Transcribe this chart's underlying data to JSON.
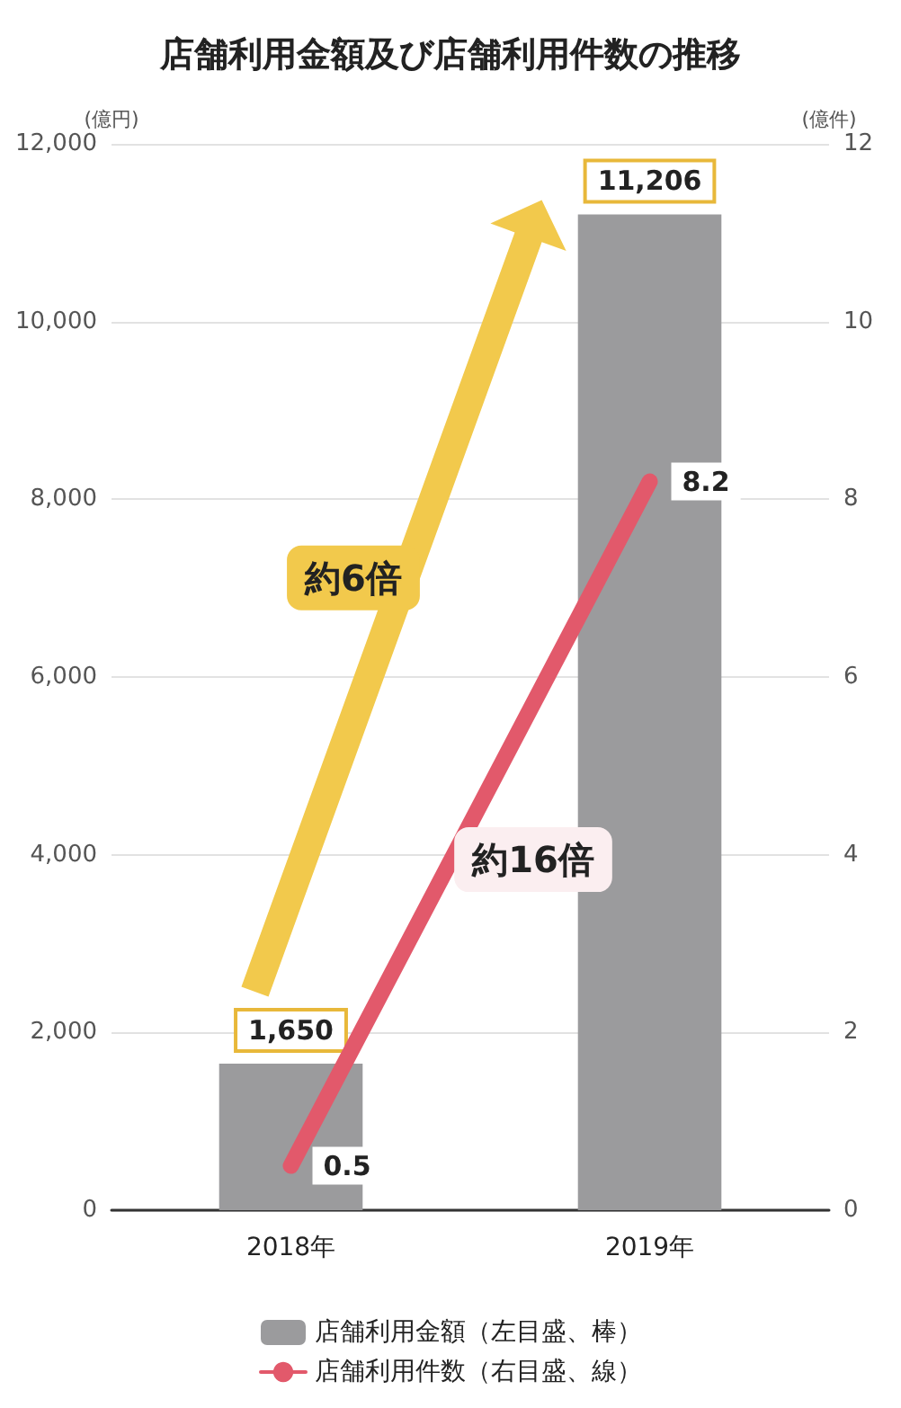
{
  "chart_data": {
    "type": "bar",
    "title": "店舗利用金額及び店舗利用件数の推移",
    "ylabel": "(億円)",
    "y2label": "(億件)",
    "categories": [
      "2018年",
      "2019年"
    ],
    "series": [
      {
        "name": "店舗利用金額（左目盛、棒）",
        "color": "#9b9b9d",
        "values": [
          1650,
          11206
        ],
        "value_labels": [
          "1,650",
          "11,206"
        ]
      },
      {
        "name": "店舗利用件数（右目盛、線）",
        "type": "line",
        "axis": "y2",
        "color": "#e2596b",
        "values": [
          0.5,
          8.2
        ],
        "value_labels": [
          "0.5",
          "8.2"
        ]
      }
    ],
    "ylim": [
      0,
      12000
    ],
    "yticks": [
      {
        "value": 0,
        "label": "0"
      },
      {
        "value": 2000,
        "label": "2,000"
      },
      {
        "value": 4000,
        "label": "4,000"
      },
      {
        "value": 6000,
        "label": "6,000"
      },
      {
        "value": 8000,
        "label": "8,000"
      },
      {
        "value": 10000,
        "label": "10,000"
      },
      {
        "value": 12000,
        "label": "12,000"
      }
    ],
    "y2lim": [
      0,
      12
    ],
    "y2ticks": [
      0,
      2,
      4,
      6,
      8,
      10,
      12
    ],
    "annotations": [
      "約6倍",
      "約16倍"
    ],
    "grid": "y",
    "legend": "bottom",
    "marker": "none"
  }
}
